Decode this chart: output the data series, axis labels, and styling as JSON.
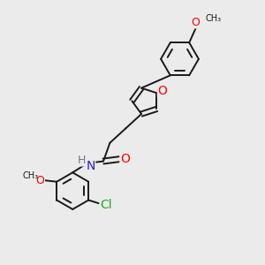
{
  "bg_color": "#ebebeb",
  "bond_color": "#1a1a1a",
  "bond_width": 1.4,
  "atom_colors": {
    "O": "#ff0000",
    "N": "#2222cc",
    "Cl": "#22aa22",
    "H": "#777777",
    "C": "#1a1a1a"
  },
  "font_size": 9,
  "fig_size": [
    3.0,
    3.0
  ],
  "dpi": 100
}
